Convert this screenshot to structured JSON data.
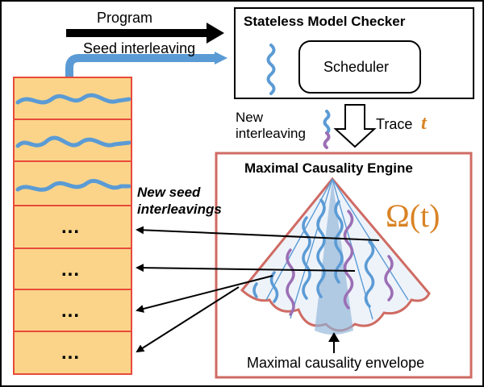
{
  "program_label": "Program",
  "seed_interleaving_label": "Seed interleaving",
  "checker": {
    "title": "Stateless Model Checker",
    "scheduler_label": "Scheduler"
  },
  "new_interleaving_label": "New\ninterleaving",
  "trace_label": "Trace",
  "trace_symbol": "t",
  "engine": {
    "title": "Maximal Causality Engine",
    "omega_label": "Ω(t)",
    "envelope_label": "Maximal causality envelope"
  },
  "new_seed_label": "New seed\ninterleavings",
  "stack": {
    "rows": [
      {
        "kind": "trace"
      },
      {
        "kind": "trace"
      },
      {
        "kind": "trace"
      },
      {
        "kind": "dots",
        "text": "..."
      },
      {
        "kind": "dots",
        "text": "..."
      },
      {
        "kind": "dots",
        "text": "..."
      },
      {
        "kind": "dots",
        "text": "..."
      }
    ]
  },
  "colors": {
    "stack_fill": "#fbd48a",
    "stack_border": "#e84a3a",
    "trace_blue": "#5b9bd5",
    "trace_purple": "#9b6fb5",
    "engine_border": "#cf6b63",
    "omega_orange": "#d98324",
    "cone_fill": "#d6e4f3",
    "cone_core": "#8fb3d9"
  }
}
